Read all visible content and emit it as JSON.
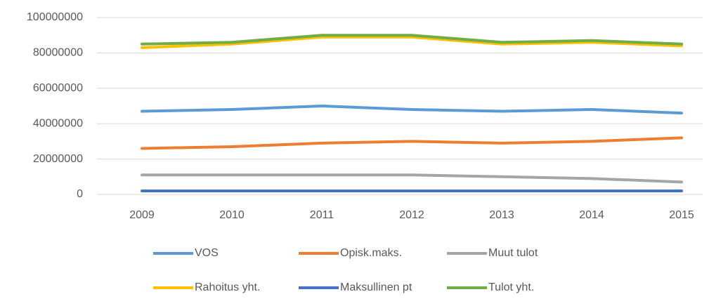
{
  "chart_data": {
    "type": "line",
    "categories": [
      "2009",
      "2010",
      "2011",
      "2012",
      "2013",
      "2014",
      "2015"
    ],
    "series": [
      {
        "name": "VOS",
        "color": "#5b9bd5",
        "values": [
          47000000,
          48000000,
          50000000,
          48000000,
          47000000,
          48000000,
          46000000
        ]
      },
      {
        "name": "Opisk.maks.",
        "color": "#ed7d31",
        "values": [
          26000000,
          27000000,
          29000000,
          30000000,
          29000000,
          30000000,
          32000000
        ]
      },
      {
        "name": "Muut tulot",
        "color": "#a5a5a5",
        "values": [
          11000000,
          11000000,
          11000000,
          11000000,
          10000000,
          9000000,
          7000000
        ]
      },
      {
        "name": "Rahoitus yht.",
        "color": "#ffc000",
        "values": [
          83000000,
          85000000,
          89000000,
          89000000,
          85000000,
          86000000,
          84000000
        ]
      },
      {
        "name": "Maksullinen pt",
        "color": "#4472c4",
        "values": [
          2000000,
          2000000,
          2000000,
          2000000,
          2000000,
          2000000,
          2000000
        ]
      },
      {
        "name": "Tulot yht.",
        "color": "#70ad47",
        "values": [
          85000000,
          86000000,
          90000000,
          90000000,
          86000000,
          87000000,
          85000000
        ]
      }
    ],
    "ylim": [
      0,
      100000000
    ],
    "yticks": [
      0,
      20000000,
      40000000,
      60000000,
      80000000,
      100000000
    ],
    "grid": true
  }
}
